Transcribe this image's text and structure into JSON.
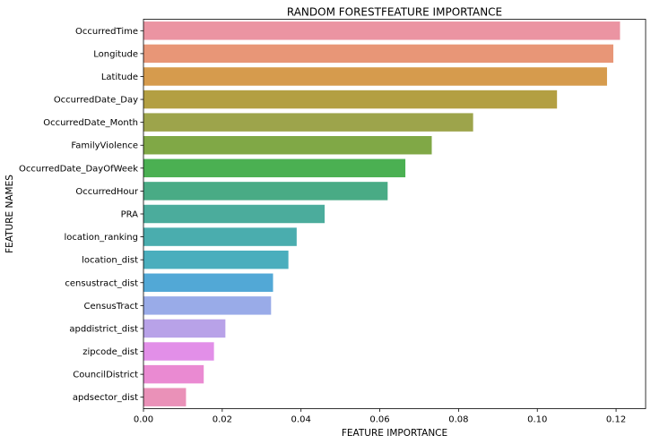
{
  "chart_data": {
    "type": "bar",
    "orientation": "horizontal",
    "title": "RANDOM FORESTFEATURE IMPORTANCE",
    "xlabel": "FEATURE IMPORTANCE",
    "ylabel": "FEATURE NAMES",
    "xlim": [
      0,
      0.1275
    ],
    "xticks": [
      "0.00",
      "0.02",
      "0.04",
      "0.06",
      "0.08",
      "0.10",
      "0.12"
    ],
    "grid": false,
    "categories": [
      "OccurredTime",
      "Longitude",
      "Latitude",
      "OccurredDate_Day",
      "OccurredDate_Month",
      "FamilyViolence",
      "OccurredDate_DayOfWeek",
      "OccurredHour",
      "PRA",
      "location_ranking",
      "location_dist",
      "censustract_dist",
      "CensusTract",
      "apddistrict_dist",
      "zipcode_dist",
      "CouncilDistrict",
      "apdsector_dist"
    ],
    "values": [
      0.121,
      0.1193,
      0.1177,
      0.105,
      0.0837,
      0.0732,
      0.0665,
      0.062,
      0.046,
      0.0389,
      0.0368,
      0.0329,
      0.0324,
      0.0208,
      0.0179,
      0.0153,
      0.0108
    ],
    "colors": [
      "#eb94a2",
      "#e89677",
      "#d69b4d",
      "#b39f42",
      "#9da44b",
      "#80a846",
      "#4bb052",
      "#49ab85",
      "#4bac9c",
      "#4aadae",
      "#4aaebd",
      "#52a8d6",
      "#99abe8",
      "#b8a2e8",
      "#e28fe8",
      "#ea8ad2",
      "#ea91b8"
    ]
  }
}
